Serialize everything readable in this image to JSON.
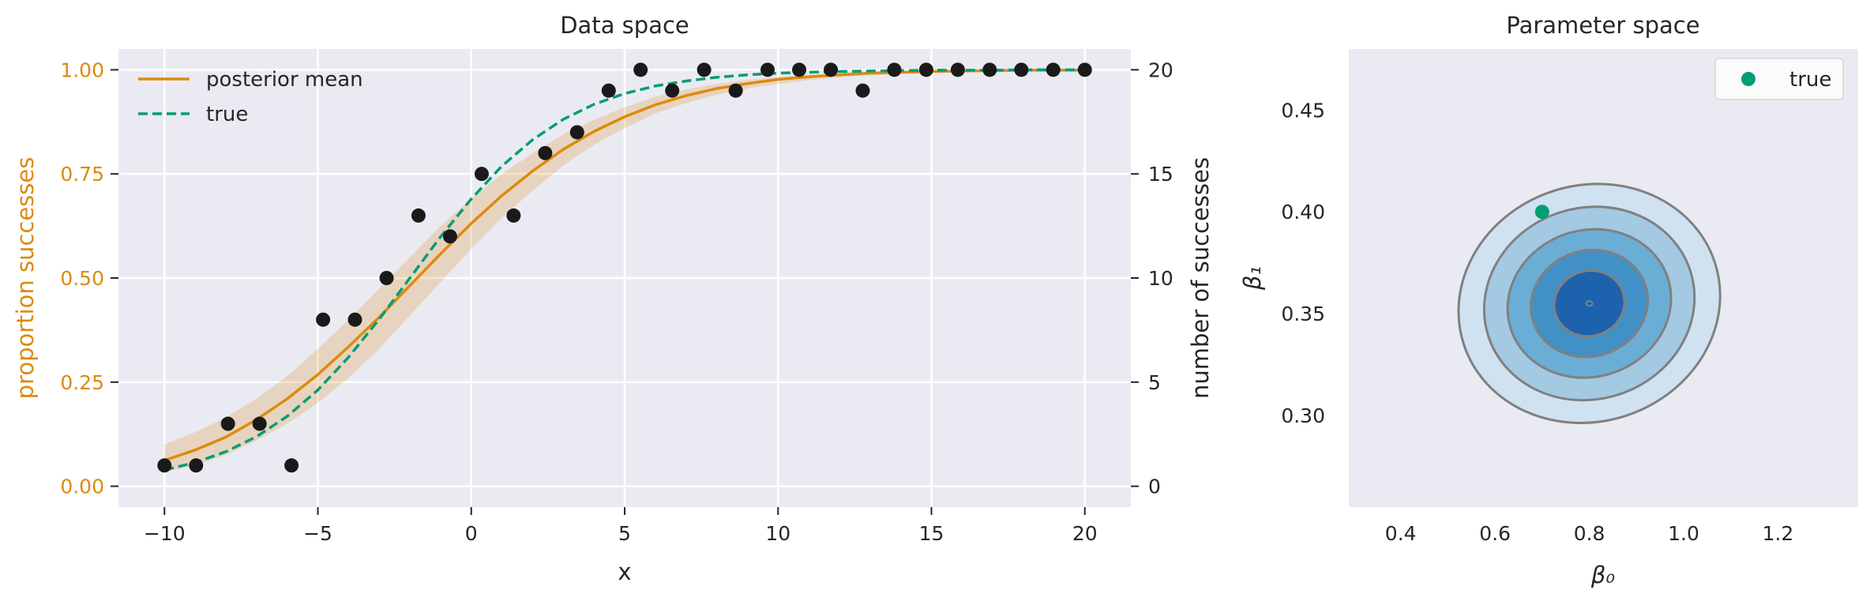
{
  "chart_data": [
    {
      "type": "line",
      "title": "Data space",
      "xlabel": "x",
      "ylabel": "proportion successes",
      "ylabel_right": "number of successes",
      "xlim": [
        -11.5,
        21.5
      ],
      "ylim": [
        -0.05,
        1.05
      ],
      "ylim_right": [
        -1,
        21
      ],
      "xticks": [
        -10,
        -5,
        0,
        5,
        10,
        15,
        20
      ],
      "xtick_labels": [
        "−10",
        "−5",
        "0",
        "5",
        "10",
        "15",
        "20"
      ],
      "yticks": [
        0.0,
        0.25,
        0.5,
        0.75,
        1.0
      ],
      "ytick_labels": [
        "0.00",
        "0.25",
        "0.50",
        "0.75",
        "1.00"
      ],
      "yticks_right": [
        0,
        5,
        10,
        15,
        20
      ],
      "ytick_labels_right": [
        "0",
        "5",
        "10",
        "15",
        "20"
      ],
      "grid": true,
      "legend_position": "upper-left",
      "series": [
        {
          "name": "posterior mean",
          "style": "solid",
          "color": "#dd8a0e",
          "x": [
            -10,
            -9,
            -8,
            -7,
            -6,
            -5,
            -4,
            -3,
            -2,
            -1,
            0,
            1,
            2,
            3,
            4,
            5,
            6,
            7,
            8,
            9,
            10,
            11,
            12,
            13,
            14,
            15,
            16,
            17,
            18,
            19,
            20
          ],
          "y": [
            0.062,
            0.087,
            0.118,
            0.16,
            0.21,
            0.268,
            0.335,
            0.406,
            0.482,
            0.558,
            0.631,
            0.698,
            0.757,
            0.809,
            0.852,
            0.887,
            0.916,
            0.938,
            0.955,
            0.967,
            0.977,
            0.983,
            0.988,
            0.992,
            0.994,
            0.996,
            0.997,
            0.998,
            0.999,
            0.999,
            0.999
          ],
          "band_lower": [
            0.035,
            0.05,
            0.075,
            0.11,
            0.15,
            0.2,
            0.26,
            0.33,
            0.41,
            0.49,
            0.57,
            0.645,
            0.71,
            0.77,
            0.82,
            0.86,
            0.895,
            0.92,
            0.94,
            0.955,
            0.966,
            0.975,
            0.982,
            0.987,
            0.99,
            0.993,
            0.995,
            0.996,
            0.997,
            0.998,
            0.998
          ],
          "band_upper": [
            0.1,
            0.13,
            0.165,
            0.21,
            0.265,
            0.33,
            0.4,
            0.475,
            0.55,
            0.625,
            0.69,
            0.75,
            0.8,
            0.845,
            0.88,
            0.91,
            0.935,
            0.953,
            0.966,
            0.976,
            0.983,
            0.988,
            0.992,
            0.995,
            0.997,
            0.998,
            0.999,
            0.999,
            1.0,
            1.0,
            1.0
          ]
        },
        {
          "name": "true",
          "style": "dashed",
          "color": "#029e73",
          "x": [
            -10,
            -9,
            -8,
            -7,
            -6,
            -5,
            -4,
            -3,
            -2,
            -1,
            0,
            1,
            2,
            3,
            4,
            5,
            6,
            7,
            8,
            9,
            10,
            11,
            12,
            13,
            14,
            15,
            16,
            17,
            18,
            19,
            20
          ],
          "y": [
            0.039,
            0.057,
            0.083,
            0.119,
            0.168,
            0.231,
            0.31,
            0.401,
            0.5,
            0.599,
            0.69,
            0.769,
            0.832,
            0.881,
            0.917,
            0.943,
            0.961,
            0.973,
            0.982,
            0.988,
            0.992,
            0.994,
            0.996,
            0.997,
            0.998,
            0.999,
            0.999,
            0.999,
            1.0,
            1.0,
            1.0
          ]
        }
      ],
      "scatter": {
        "color": "#1a1a1a",
        "x": [
          -10,
          -8.97,
          -7.93,
          -6.9,
          -5.86,
          -4.83,
          -3.79,
          -2.76,
          -1.72,
          -0.69,
          0.34,
          1.38,
          2.41,
          3.45,
          4.48,
          5.52,
          6.55,
          7.59,
          8.62,
          9.66,
          10.69,
          11.72,
          12.76,
          13.79,
          14.83,
          15.86,
          16.9,
          17.93,
          18.97,
          20
        ],
        "proportion": [
          0.05,
          0.05,
          0.15,
          0.15,
          0.05,
          0.4,
          0.4,
          0.5,
          0.65,
          0.6,
          0.75,
          0.65,
          0.8,
          0.85,
          0.95,
          1.0,
          0.95,
          1.0,
          0.95,
          1.0,
          1.0,
          1.0,
          0.95,
          1.0,
          1.0,
          1.0,
          1.0,
          1.0,
          1.0,
          1.0
        ]
      }
    },
    {
      "type": "contour",
      "title": "Parameter space",
      "xlabel": "β₀",
      "ylabel": "β₁",
      "xlim": [
        0.29,
        1.37
      ],
      "ylim": [
        0.255,
        0.48
      ],
      "xticks": [
        0.4,
        0.6,
        0.8,
        1.0,
        1.2
      ],
      "xtick_labels": [
        "0.4",
        "0.6",
        "0.8",
        "1.0",
        "1.2"
      ],
      "yticks": [
        0.3,
        0.35,
        0.4,
        0.45
      ],
      "ytick_labels": [
        "0.30",
        "0.35",
        "0.40",
        "0.45"
      ],
      "grid": false,
      "legend_position": "upper-right",
      "contour_center": [
        0.8,
        0.355
      ],
      "contour_levels": [
        {
          "rx": 0.28,
          "ry": 0.058,
          "fill": "#d0e1f2"
        },
        {
          "rx": 0.225,
          "ry": 0.047,
          "fill": "#a3c9e3"
        },
        {
          "rx": 0.175,
          "ry": 0.036,
          "fill": "#6aaed6"
        },
        {
          "rx": 0.125,
          "ry": 0.026,
          "fill": "#4191c6"
        },
        {
          "rx": 0.075,
          "ry": 0.016,
          "fill": "#1c62ad"
        }
      ],
      "true_point": {
        "name": "true",
        "x": 0.7,
        "y": 0.4,
        "color": "#029e73"
      }
    }
  ]
}
